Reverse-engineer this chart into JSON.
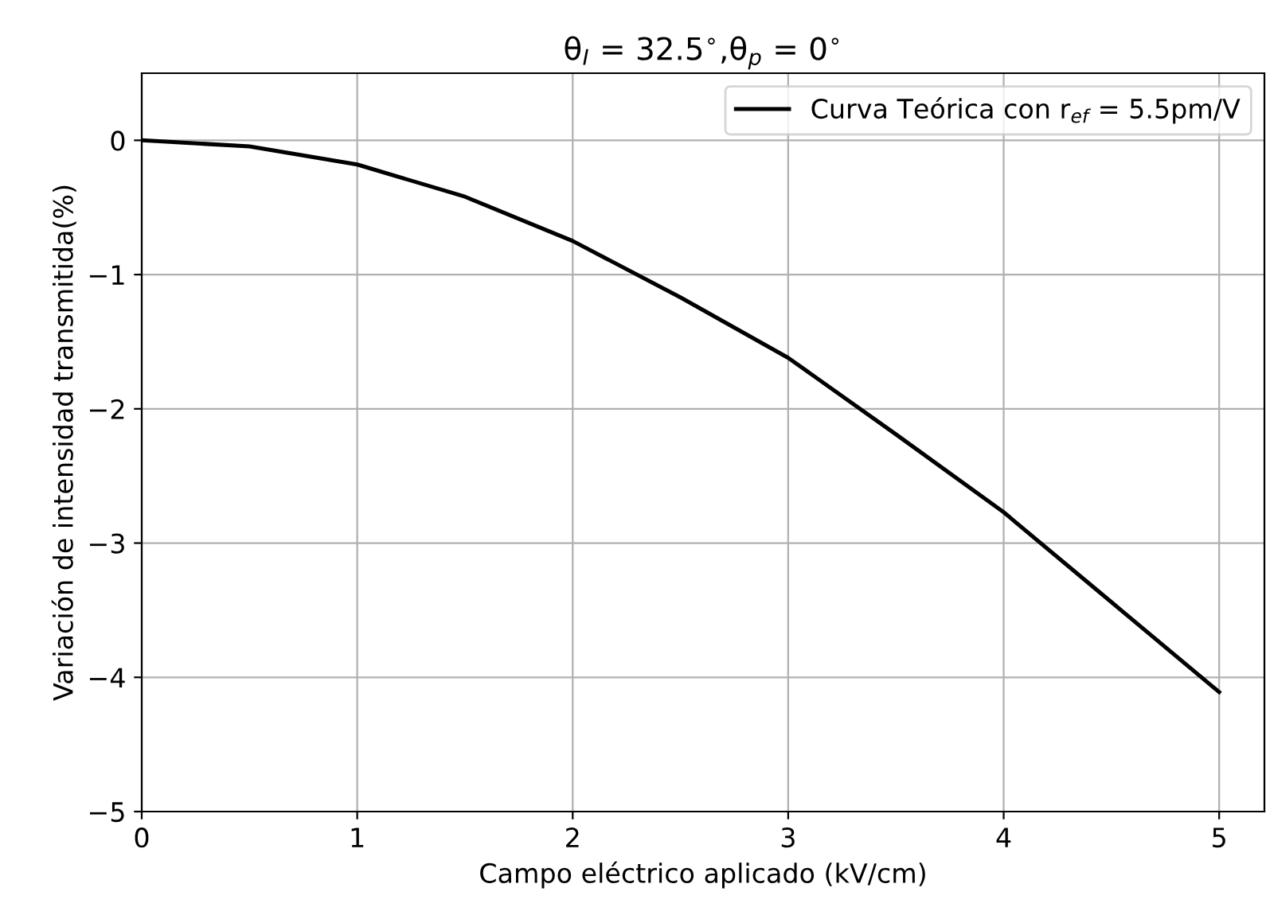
{
  "chart_data": {
    "type": "line",
    "title": "θ$_{I}$ = 32.5$^{∘}$,θ$_{p}$ = 0$^{∘}$",
    "xlabel": "Campo eléctrico aplicado (kV/cm)",
    "ylabel": "Variación de intensidad transmitida(%)",
    "x": [
      0,
      0.5,
      1,
      1.5,
      2,
      2.5,
      3,
      3.5,
      4,
      4.5,
      5
    ],
    "series": [
      {
        "name": "Curva Teórica con r$_{ef}$ = 5.5pm/V",
        "color": "#000000",
        "values": [
          0,
          -0.045,
          -0.18,
          -0.42,
          -0.75,
          -1.17,
          -1.62,
          -2.19,
          -2.77,
          -3.44,
          -4.11
        ]
      }
    ],
    "xlim": [
      0,
      5.21
    ],
    "ylim": [
      -5,
      0.5
    ],
    "xticks": [
      0,
      1,
      2,
      3,
      4,
      5
    ],
    "yticks": [
      {
        "value": -5,
        "label": "−5"
      },
      {
        "value": -4,
        "label": "−4"
      },
      {
        "value": -3,
        "label": "−3"
      },
      {
        "value": -2,
        "label": "−2"
      },
      {
        "value": -1,
        "label": "−1"
      },
      0
    ],
    "grid": true,
    "legend": "upper right",
    "line_style": "solid",
    "marker": "none"
  }
}
